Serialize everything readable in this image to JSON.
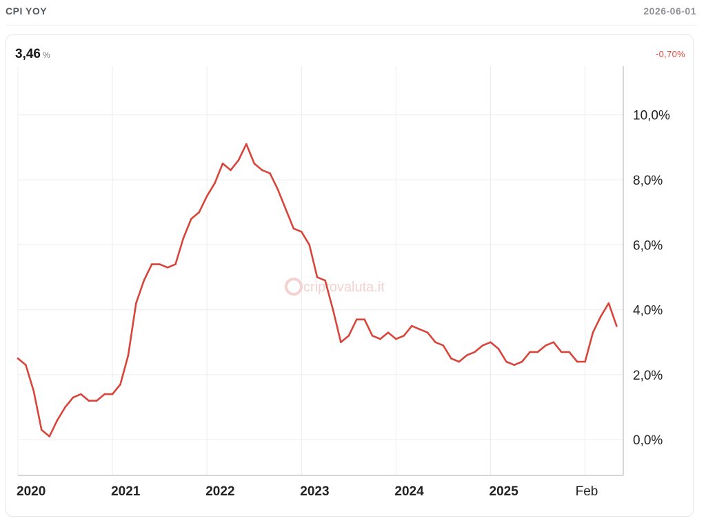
{
  "header": {
    "title": "CPI YOY",
    "date": "2026-06-01"
  },
  "summary": {
    "value": "3,46",
    "unit": "%",
    "change": "-0,70%"
  },
  "watermark": {
    "text": "criptovaluta.it",
    "mark": "®"
  },
  "colors": {
    "line": "#d9443a",
    "grid": "#ececec",
    "axis": "#c8c8c8",
    "change_negative": "#e0453c"
  },
  "chart_data": {
    "type": "line",
    "x_labels": [
      "2020",
      "2021",
      "2022",
      "2023",
      "2024",
      "2025",
      "Feb"
    ],
    "y_ticks": [
      "0,0%",
      "2,0%",
      "4,0%",
      "6,0%",
      "8,0%",
      "10,0%"
    ],
    "ylim": [
      -1.1,
      11.5
    ],
    "grid": true,
    "x": [
      "2020-01",
      "2020-02",
      "2020-03",
      "2020-04",
      "2020-05",
      "2020-06",
      "2020-07",
      "2020-08",
      "2020-09",
      "2020-10",
      "2020-11",
      "2020-12",
      "2021-01",
      "2021-02",
      "2021-03",
      "2021-04",
      "2021-05",
      "2021-06",
      "2021-07",
      "2021-08",
      "2021-09",
      "2021-10",
      "2021-11",
      "2021-12",
      "2022-01",
      "2022-02",
      "2022-03",
      "2022-04",
      "2022-05",
      "2022-06",
      "2022-07",
      "2022-08",
      "2022-09",
      "2022-10",
      "2022-11",
      "2022-12",
      "2023-01",
      "2023-02",
      "2023-03",
      "2023-04",
      "2023-05",
      "2023-06",
      "2023-07",
      "2023-08",
      "2023-09",
      "2023-10",
      "2023-11",
      "2023-12",
      "2024-01",
      "2024-02",
      "2024-03",
      "2024-04",
      "2024-05",
      "2024-06",
      "2024-07",
      "2024-08",
      "2024-09",
      "2024-10",
      "2024-11",
      "2024-12",
      "2025-01",
      "2025-02",
      "2025-03",
      "2025-04",
      "2025-05",
      "2025-06",
      "2025-07",
      "2025-08",
      "2025-09",
      "2025-10",
      "2025-11",
      "2025-12",
      "2026-01",
      "2026-02",
      "2026-03",
      "2026-04",
      "2026-05"
    ],
    "values": [
      2.5,
      2.3,
      1.5,
      0.3,
      0.1,
      0.6,
      1.0,
      1.3,
      1.4,
      1.2,
      1.2,
      1.4,
      1.4,
      1.7,
      2.6,
      4.2,
      4.9,
      5.4,
      5.4,
      5.3,
      5.4,
      6.2,
      6.8,
      7.0,
      7.5,
      7.9,
      8.5,
      8.3,
      8.6,
      9.1,
      8.5,
      8.3,
      8.2,
      7.7,
      7.1,
      6.5,
      6.4,
      6.0,
      5.0,
      4.9,
      4.0,
      3.0,
      3.2,
      3.7,
      3.7,
      3.2,
      3.1,
      3.3,
      3.1,
      3.2,
      3.5,
      3.4,
      3.3,
      3.0,
      2.9,
      2.5,
      2.4,
      2.6,
      2.7,
      2.9,
      3.0,
      2.8,
      2.4,
      2.3,
      2.4,
      2.7,
      2.7,
      2.9,
      3.0,
      2.7,
      2.7,
      2.4,
      2.4,
      3.3,
      3.8,
      4.2,
      3.5
    ]
  }
}
